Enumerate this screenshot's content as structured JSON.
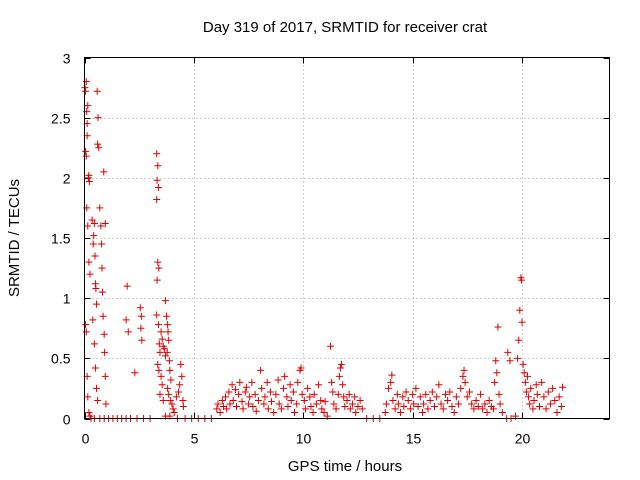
{
  "colors": {
    "marker": "#e00000",
    "frame": "#000000",
    "grid": "#a0a0a0"
  },
  "chart_data": {
    "type": "scatter",
    "title": "Day 319 of 2017, SRMTID for receiver crat",
    "xlabel": "GPS time / hours",
    "ylabel": "SRMTID / TECUs",
    "xlim": [
      0,
      24
    ],
    "ylim": [
      0,
      3
    ],
    "xticks": [
      0,
      5,
      10,
      15,
      20
    ],
    "yticks": [
      0,
      0.5,
      1,
      1.5,
      2,
      2.5,
      3
    ],
    "xtick_labels": [
      "0",
      "5",
      "10",
      "15",
      "20"
    ],
    "ytick_labels": [
      "0",
      "0.5",
      "1",
      "1.5",
      "2",
      "2.5",
      "3"
    ],
    "grid": true,
    "marker": "plus",
    "series": [
      {
        "name": "SRMTID",
        "points": [
          [
            0.02,
            2.75
          ],
          [
            0.05,
            2.72
          ],
          [
            0.08,
            2.8
          ],
          [
            0.1,
            2.55
          ],
          [
            0.12,
            2.45
          ],
          [
            0.15,
            2.6
          ],
          [
            0.05,
            2.22
          ],
          [
            0.08,
            2.18
          ],
          [
            0.12,
            2.35
          ],
          [
            0.18,
            2.0
          ],
          [
            0.2,
            2.02
          ],
          [
            0.22,
            1.97
          ],
          [
            0.1,
            1.75
          ],
          [
            0.15,
            1.6
          ],
          [
            0.2,
            1.3
          ],
          [
            0.25,
            1.2
          ],
          [
            0.05,
            0.78
          ],
          [
            0.08,
            0.72
          ],
          [
            0.12,
            0.35
          ],
          [
            0.15,
            0.18
          ],
          [
            0.2,
            0.05
          ],
          [
            0.25,
            0.02
          ],
          [
            0.35,
            1.65
          ],
          [
            0.4,
            1.45
          ],
          [
            0.42,
            1.52
          ],
          [
            0.45,
            1.62
          ],
          [
            0.48,
            1.35
          ],
          [
            0.5,
            1.12
          ],
          [
            0.52,
            1.08
          ],
          [
            0.55,
            0.95
          ],
          [
            0.38,
            0.82
          ],
          [
            0.45,
            0.62
          ],
          [
            0.5,
            0.42
          ],
          [
            0.55,
            0.25
          ],
          [
            0.6,
            0.15
          ],
          [
            0.6,
            2.28
          ],
          [
            0.65,
            2.25
          ],
          [
            0.62,
            2.5
          ],
          [
            0.58,
            2.72
          ],
          [
            0.7,
            1.75
          ],
          [
            0.75,
            1.6
          ],
          [
            0.78,
            1.45
          ],
          [
            0.8,
            1.25
          ],
          [
            0.82,
            1.05
          ],
          [
            0.85,
            0.85
          ],
          [
            0.9,
            0.7
          ],
          [
            0.92,
            0.55
          ],
          [
            0.95,
            0.35
          ],
          [
            0.98,
            0.12
          ],
          [
            0.88,
            2.05
          ],
          [
            0.95,
            1.62
          ],
          [
            0.3,
            0.0
          ],
          [
            0.45,
            0.0
          ],
          [
            0.7,
            0.0
          ],
          [
            0.9,
            0.0
          ],
          [
            1.1,
            0.0
          ],
          [
            1.3,
            0.0
          ],
          [
            1.5,
            0.0
          ],
          [
            1.7,
            0.0
          ],
          [
            1.9,
            0.0
          ],
          [
            2.1,
            0.0
          ],
          [
            2.4,
            0.0
          ],
          [
            2.7,
            0.0
          ],
          [
            3.0,
            0.0
          ],
          [
            1.95,
            1.1
          ],
          [
            1.9,
            0.82
          ],
          [
            2.0,
            0.72
          ],
          [
            2.3,
            0.38
          ],
          [
            2.55,
            0.92
          ],
          [
            2.6,
            0.85
          ],
          [
            2.58,
            0.75
          ],
          [
            2.62,
            0.65
          ],
          [
            3.3,
            2.2
          ],
          [
            3.35,
            2.1
          ],
          [
            3.32,
            1.98
          ],
          [
            3.38,
            1.92
          ],
          [
            3.3,
            1.82
          ],
          [
            3.35,
            1.3
          ],
          [
            3.4,
            1.25
          ],
          [
            3.32,
            1.15
          ],
          [
            3.3,
            0.86
          ],
          [
            3.38,
            0.78
          ],
          [
            3.42,
            0.62
          ],
          [
            3.45,
            0.55
          ],
          [
            3.5,
            0.72
          ],
          [
            3.55,
            0.66
          ],
          [
            3.6,
            0.6
          ],
          [
            3.65,
            0.58
          ],
          [
            3.7,
            0.52
          ],
          [
            3.35,
            0.45
          ],
          [
            3.4,
            0.4
          ],
          [
            3.5,
            0.35
          ],
          [
            3.55,
            0.28
          ],
          [
            3.45,
            0.2
          ],
          [
            3.6,
            0.15
          ],
          [
            3.7,
            0.98
          ],
          [
            3.75,
            0.85
          ],
          [
            3.8,
            0.78
          ],
          [
            3.82,
            0.72
          ],
          [
            3.85,
            0.65
          ],
          [
            3.78,
            0.55
          ],
          [
            3.88,
            0.48
          ],
          [
            3.9,
            0.4
          ],
          [
            3.95,
            0.32
          ],
          [
            3.8,
            0.25
          ],
          [
            3.85,
            0.2
          ],
          [
            3.92,
            0.15
          ],
          [
            4.0,
            0.12
          ],
          [
            4.05,
            0.08
          ],
          [
            3.7,
            0.02
          ],
          [
            3.9,
            0.02
          ],
          [
            4.1,
            0.05
          ],
          [
            4.2,
            0.18
          ],
          [
            4.3,
            0.22
          ],
          [
            4.35,
            0.28
          ],
          [
            4.4,
            0.45
          ],
          [
            4.45,
            0.35
          ],
          [
            4.5,
            0.15
          ],
          [
            4.52,
            0.1
          ],
          [
            4.25,
            0.0
          ],
          [
            4.6,
            0.0
          ],
          [
            4.9,
            0.0
          ],
          [
            5.2,
            0.0
          ],
          [
            5.5,
            0.0
          ],
          [
            5.8,
            0.0
          ],
          [
            6.05,
            0.08
          ],
          [
            6.1,
            0.12
          ],
          [
            6.2,
            0.05
          ],
          [
            6.3,
            0.15
          ],
          [
            6.35,
            0.1
          ],
          [
            6.45,
            0.18
          ],
          [
            6.5,
            0.08
          ],
          [
            6.6,
            0.22
          ],
          [
            6.65,
            0.12
          ],
          [
            6.75,
            0.28
          ],
          [
            6.8,
            0.15
          ],
          [
            6.9,
            0.24
          ],
          [
            6.95,
            0.1
          ],
          [
            7.05,
            0.2
          ],
          [
            7.1,
            0.3
          ],
          [
            7.2,
            0.14
          ],
          [
            7.25,
            0.08
          ],
          [
            7.35,
            0.22
          ],
          [
            7.4,
            0.26
          ],
          [
            7.5,
            0.12
          ],
          [
            7.55,
            0.18
          ],
          [
            7.65,
            0.3
          ],
          [
            7.7,
            0.1
          ],
          [
            7.8,
            0.2
          ],
          [
            7.85,
            0.06
          ],
          [
            7.95,
            0.15
          ],
          [
            8.05,
            0.4
          ],
          [
            8.1,
            0.25
          ],
          [
            8.2,
            0.12
          ],
          [
            8.25,
            0.18
          ],
          [
            8.35,
            0.3
          ],
          [
            8.4,
            0.08
          ],
          [
            8.5,
            0.22
          ],
          [
            8.55,
            0.14
          ],
          [
            8.65,
            0.05
          ],
          [
            8.75,
            0.2
          ],
          [
            8.85,
            0.32
          ],
          [
            8.9,
            0.12
          ],
          [
            9.0,
            0.08
          ],
          [
            9.1,
            0.25
          ],
          [
            9.15,
            0.35
          ],
          [
            9.25,
            0.18
          ],
          [
            9.3,
            0.1
          ],
          [
            9.4,
            0.28
          ],
          [
            9.45,
            0.15
          ],
          [
            9.55,
            0.22
          ],
          [
            9.6,
            0.05
          ],
          [
            9.7,
            0.12
          ],
          [
            9.75,
            0.3
          ],
          [
            9.85,
            0.4
          ],
          [
            9.9,
            0.42
          ],
          [
            9.95,
            0.2
          ],
          [
            10.05,
            0.15
          ],
          [
            10.1,
            0.08
          ],
          [
            10.2,
            0.25
          ],
          [
            10.3,
            0.18
          ],
          [
            10.35,
            0.1
          ],
          [
            10.45,
            0.05
          ],
          [
            10.5,
            0.2
          ],
          [
            10.6,
            0.12
          ],
          [
            10.7,
            0.28
          ],
          [
            10.8,
            0.15
          ],
          [
            10.85,
            0.08
          ],
          [
            10.95,
            0.05
          ],
          [
            11.0,
            0.14
          ],
          [
            11.1,
            0.02
          ],
          [
            11.25,
            0.6
          ],
          [
            11.3,
            0.3
          ],
          [
            11.35,
            0.22
          ],
          [
            11.4,
            0.12
          ],
          [
            11.5,
            0.08
          ],
          [
            11.6,
            0.2
          ],
          [
            11.65,
            0.35
          ],
          [
            11.7,
            0.42
          ],
          [
            11.75,
            0.45
          ],
          [
            11.8,
            0.28
          ],
          [
            11.85,
            0.18
          ],
          [
            11.9,
            0.1
          ],
          [
            12.0,
            0.15
          ],
          [
            12.1,
            0.2
          ],
          [
            12.15,
            0.08
          ],
          [
            12.25,
            0.12
          ],
          [
            12.35,
            0.18
          ],
          [
            12.4,
            0.05
          ],
          [
            12.5,
            0.1
          ],
          [
            12.6,
            0.15
          ],
          [
            12.7,
            0.08
          ],
          [
            12.9,
            0.0
          ],
          [
            13.2,
            0.0
          ],
          [
            13.5,
            0.0
          ],
          [
            13.75,
            0.05
          ],
          [
            13.8,
            0.12
          ],
          [
            13.9,
            0.25
          ],
          [
            14.0,
            0.3
          ],
          [
            14.05,
            0.36
          ],
          [
            14.1,
            0.15
          ],
          [
            14.2,
            0.08
          ],
          [
            14.3,
            0.2
          ],
          [
            14.35,
            0.12
          ],
          [
            14.45,
            0.05
          ],
          [
            14.55,
            0.18
          ],
          [
            14.6,
            0.1
          ],
          [
            14.7,
            0.22
          ],
          [
            14.8,
            0.15
          ],
          [
            14.9,
            0.08
          ],
          [
            15.0,
            0.2
          ],
          [
            15.05,
            0.12
          ],
          [
            15.15,
            0.25
          ],
          [
            15.25,
            0.1
          ],
          [
            15.35,
            0.18
          ],
          [
            15.45,
            0.05
          ],
          [
            15.5,
            0.12
          ],
          [
            15.6,
            0.2
          ],
          [
            15.7,
            0.08
          ],
          [
            15.8,
            0.15
          ],
          [
            15.9,
            0.22
          ],
          [
            16.0,
            0.1
          ],
          [
            16.1,
            0.18
          ],
          [
            16.2,
            0.28
          ],
          [
            16.3,
            0.12
          ],
          [
            16.4,
            0.08
          ],
          [
            16.5,
            0.2
          ],
          [
            16.6,
            0.15
          ],
          [
            16.7,
            0.22
          ],
          [
            16.8,
            0.1
          ],
          [
            16.9,
            0.05
          ],
          [
            17.0,
            0.18
          ],
          [
            17.1,
            0.12
          ],
          [
            17.2,
            0.25
          ],
          [
            17.3,
            0.35
          ],
          [
            17.35,
            0.4
          ],
          [
            17.4,
            0.3
          ],
          [
            17.5,
            0.18
          ],
          [
            17.6,
            0.22
          ],
          [
            17.7,
            0.12
          ],
          [
            17.8,
            0.08
          ],
          [
            17.9,
            0.15
          ],
          [
            18.0,
            0.1
          ],
          [
            18.1,
            0.2
          ],
          [
            18.2,
            0.08
          ],
          [
            18.3,
            0.12
          ],
          [
            18.4,
            0.05
          ],
          [
            18.5,
            0.15
          ],
          [
            18.6,
            0.1
          ],
          [
            18.7,
            0.08
          ],
          [
            18.75,
            0.3
          ],
          [
            18.8,
            0.48
          ],
          [
            18.85,
            0.38
          ],
          [
            18.9,
            0.76
          ],
          [
            18.95,
            0.2
          ],
          [
            19.0,
            0.12
          ],
          [
            19.1,
            0.05
          ],
          [
            19.3,
            0.0
          ],
          [
            19.5,
            0.0
          ],
          [
            19.7,
            0.02
          ],
          [
            19.35,
            0.55
          ],
          [
            19.45,
            0.48
          ],
          [
            19.8,
            0.5
          ],
          [
            19.85,
            0.65
          ],
          [
            19.9,
            0.9
          ],
          [
            19.95,
            1.17
          ],
          [
            19.98,
            1.15
          ],
          [
            20.0,
            0.8
          ],
          [
            20.05,
            0.45
          ],
          [
            20.1,
            0.38
          ],
          [
            20.15,
            0.3
          ],
          [
            20.2,
            0.22
          ],
          [
            20.25,
            0.35
          ],
          [
            20.3,
            0.18
          ],
          [
            20.35,
            0.12
          ],
          [
            20.4,
            0.25
          ],
          [
            20.5,
            0.08
          ],
          [
            20.55,
            0.15
          ],
          [
            20.65,
            0.28
          ],
          [
            20.7,
            0.2
          ],
          [
            20.8,
            0.1
          ],
          [
            20.9,
            0.3
          ],
          [
            21.0,
            0.18
          ],
          [
            21.1,
            0.08
          ],
          [
            21.2,
            0.22
          ],
          [
            21.3,
            0.12
          ],
          [
            21.4,
            0.25
          ],
          [
            21.5,
            0.15
          ],
          [
            21.6,
            0.05
          ],
          [
            21.7,
            0.18
          ],
          [
            21.8,
            0.1
          ],
          [
            21.85,
            0.26
          ]
        ]
      }
    ]
  }
}
